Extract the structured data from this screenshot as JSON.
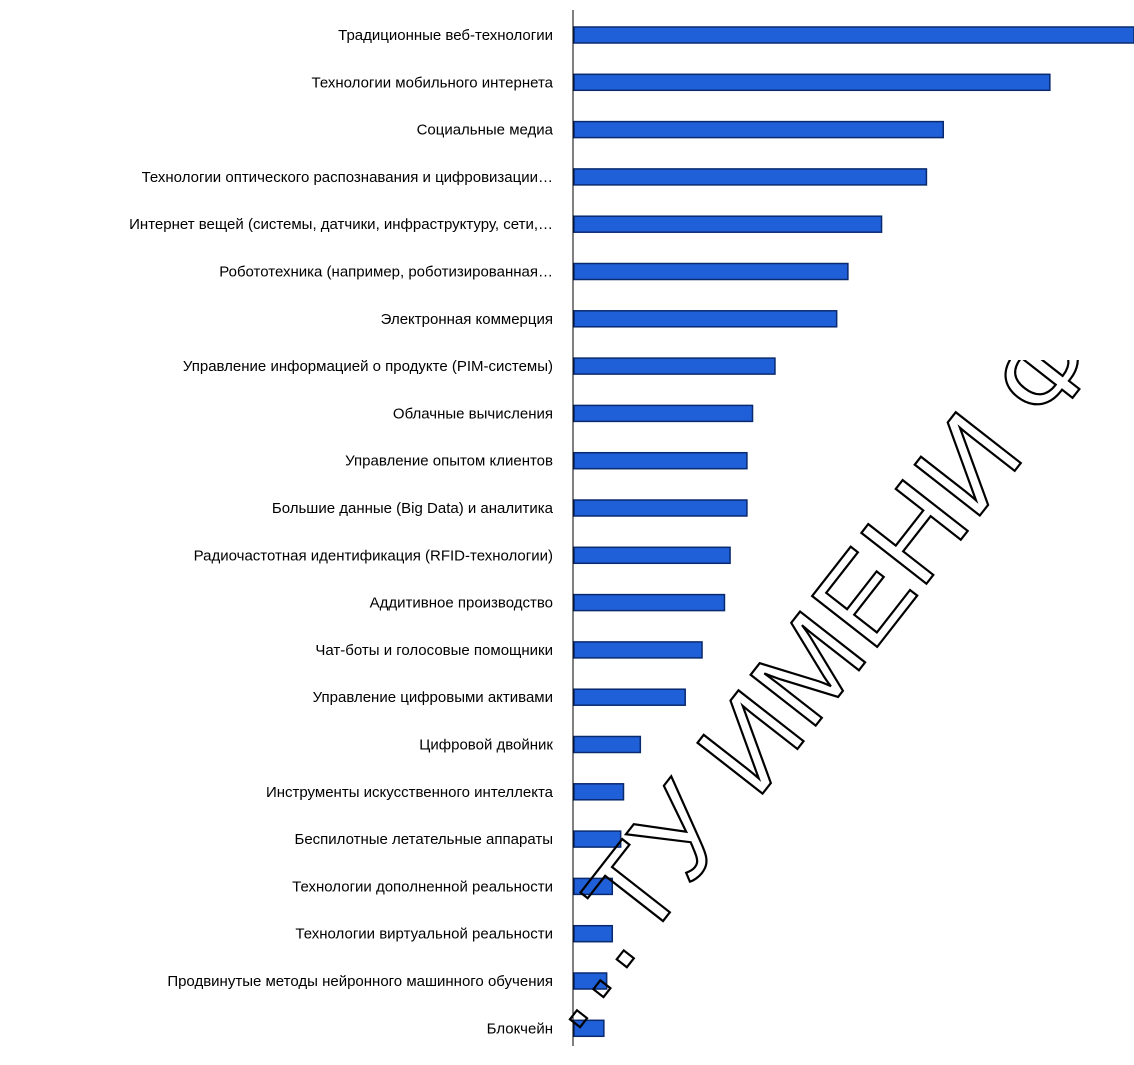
{
  "chart_data": {
    "type": "bar",
    "orientation": "horizontal",
    "title": "",
    "xlabel": "",
    "ylabel": "",
    "grid": false,
    "legend": "none",
    "bar_color": "#1f5fd8",
    "bar_edge_color": "#0a2a6e",
    "xlim": [
      0,
      100
    ],
    "categories": [
      "Традиционные веб-технологии",
      "Технологии мобильного интернета",
      "Социальные медиа",
      "Технологии оптического распознавания и цифровизации…",
      "Интернет вещей (системы, датчики, инфраструктуру, сети,…",
      "Робототехника (например, роботизированная…",
      "Электронная коммерция",
      "Управление информацией о продукте (PIM-системы)",
      "Облачные вычисления",
      "Управление опытом клиентов",
      "Большие данные (Big Data) и аналитика",
      "Радиочастотная идентификация (RFID-технологии)",
      "Аддитивное производство",
      "Чат-боты и голосовые помощники",
      "Управление цифровыми активами",
      "Цифровой двойник",
      "Инструменты искусственного интеллекта",
      "Беспилотные летательные аппараты",
      "Технологии дополненной реальности",
      "Технологии виртуальной реальности",
      "Продвинутые методы нейронного машинного обучения",
      "Блокчейн"
    ],
    "values": [
      100,
      85,
      66,
      63,
      55,
      49,
      47,
      36,
      32,
      31,
      31,
      28,
      27,
      23,
      20,
      12,
      9,
      8.5,
      7,
      7,
      6,
      5.5
    ]
  },
  "watermark": {
    "text": "…ТУ ИМЕНИ Ф. СКОР…"
  }
}
